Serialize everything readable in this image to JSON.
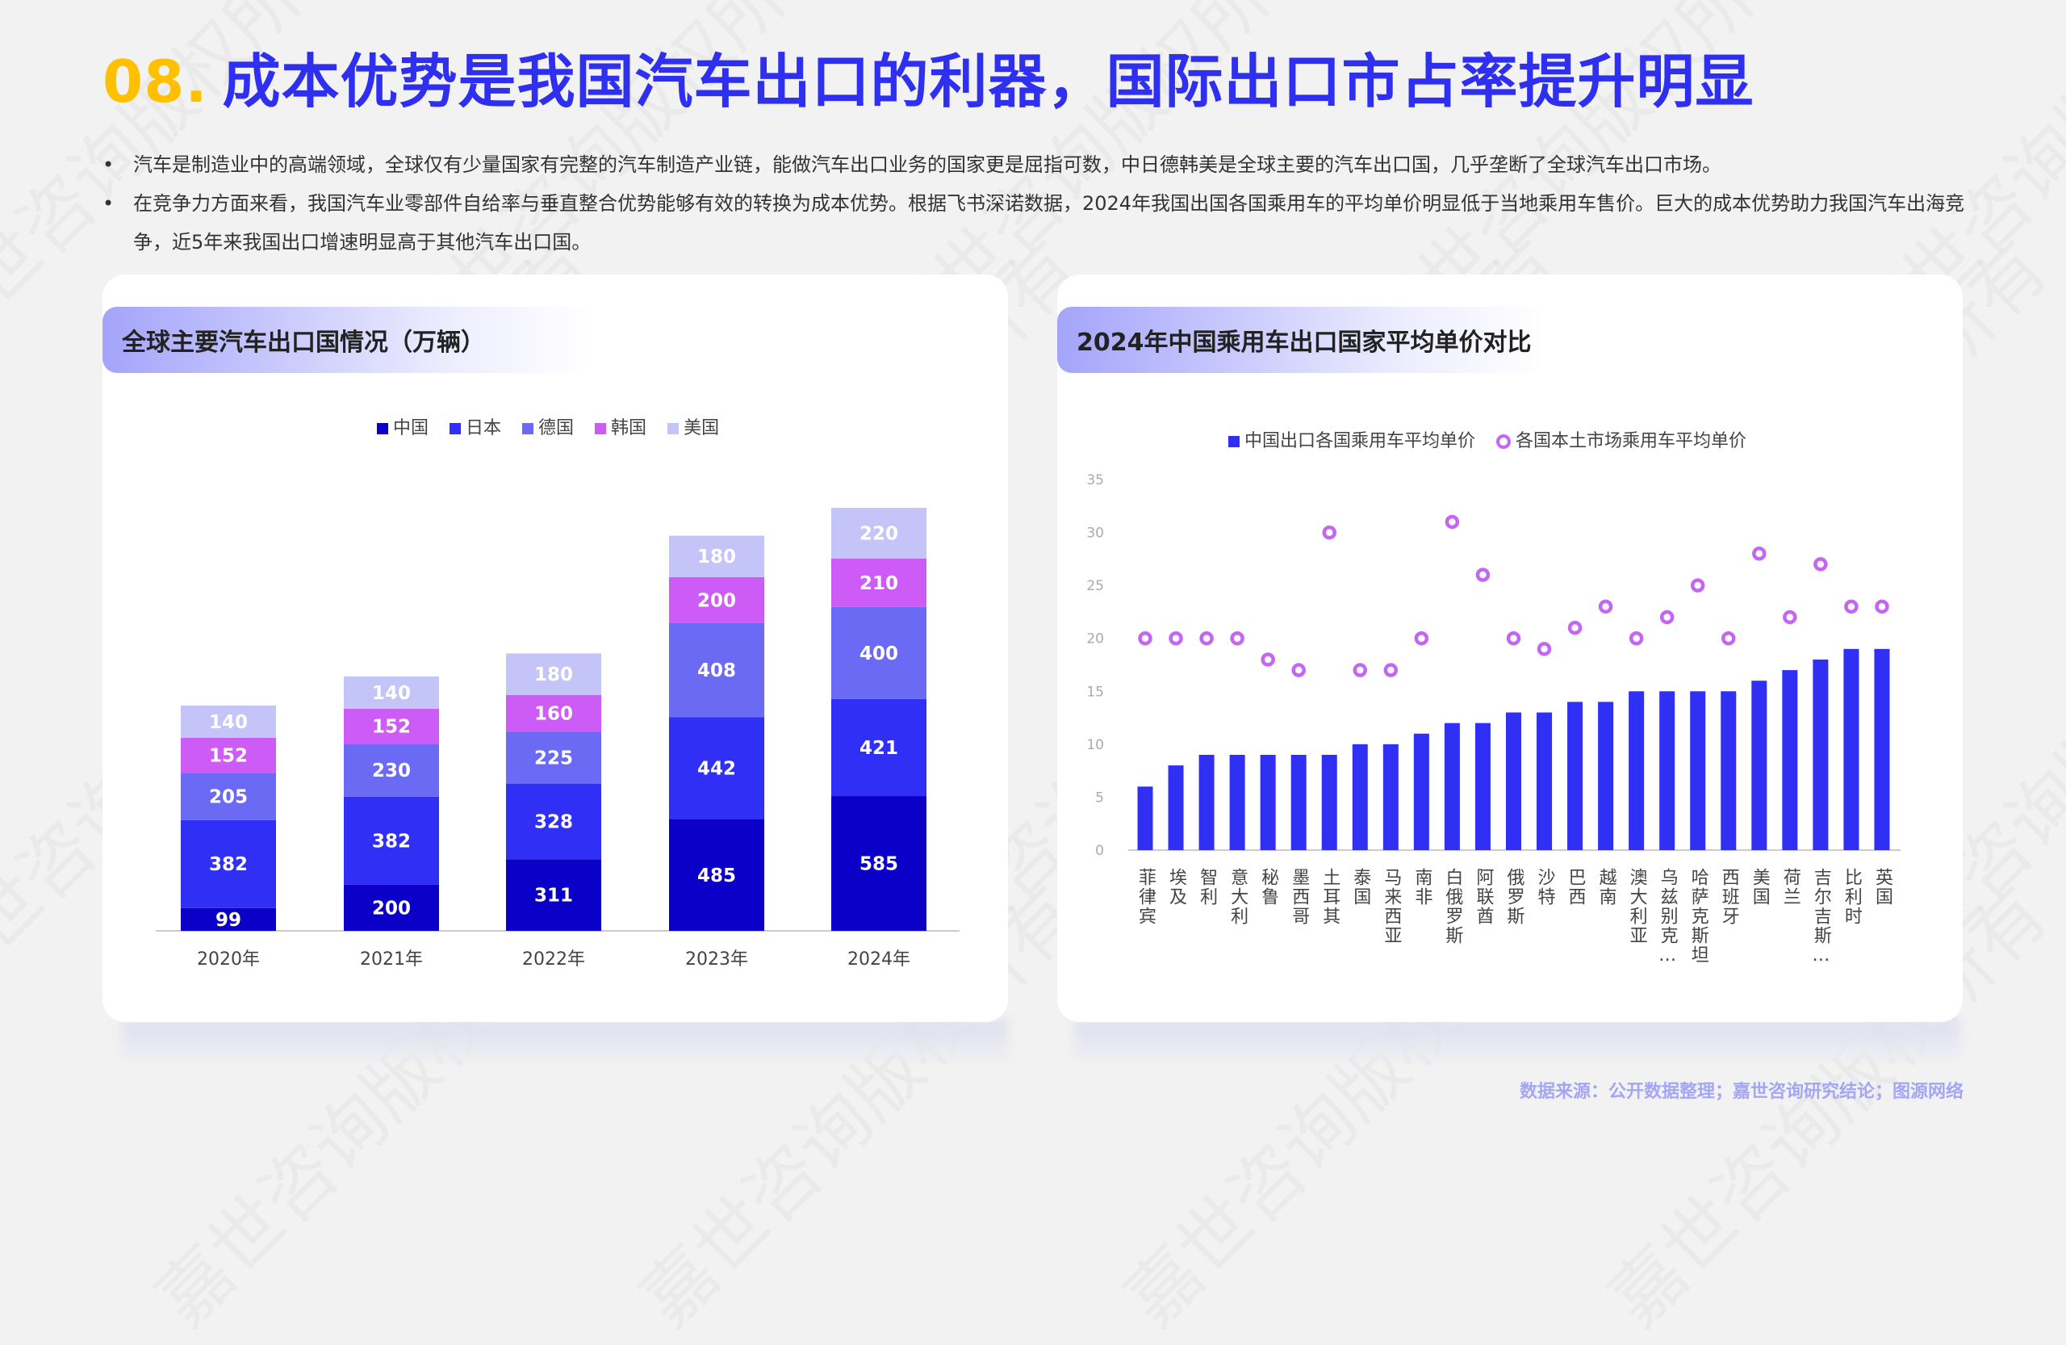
{
  "header": {
    "number": "08.",
    "title": "成本优势是我国汽车出口的利器，国际出口市占率提升明显"
  },
  "bullets": [
    "汽车是制造业中的高端领域，全球仅有少量国家有完整的汽车制造产业链，能做汽车出口业务的国家更是屈指可数，中日德韩美是全球主要的汽车出口国，几乎垄断了全球汽车出口市场。",
    "在竞争力方面来看，我国汽车业零部件自给率与垂直整合优势能够有效的转换为成本优势。根据飞书深诺数据，2024年我国出国各国乘用车的平均单价明显低于当地乘用车售价。巨大的成本优势助力我国汽车出海竞争，近5年来我国出口增速明显高于其他汽车出口国。"
  ],
  "left_panel": {
    "title": "全球主要汽车出口国情况（万辆）"
  },
  "right_panel": {
    "title": "2024年中国乘用车出口国家平均单价对比"
  },
  "source": "数据来源：公开数据整理；嘉世咨询研究结论；图源网络",
  "watermark": "嘉世咨询版权所有",
  "chart_data": [
    {
      "type": "bar",
      "stacked": true,
      "categories": [
        "2020年",
        "2021年",
        "2022年",
        "2023年",
        "2024年"
      ],
      "series": [
        {
          "name": "中国",
          "color": "#0a00c8",
          "values": [
            99,
            200,
            311,
            485,
            585
          ]
        },
        {
          "name": "日本",
          "color": "#2f2ff5",
          "values": [
            382,
            382,
            328,
            442,
            421
          ]
        },
        {
          "name": "德国",
          "color": "#6a6af5",
          "values": [
            205,
            230,
            225,
            408,
            400
          ]
        },
        {
          "name": "韩国",
          "color": "#cc5cf5",
          "values": [
            152,
            152,
            160,
            200,
            210
          ]
        },
        {
          "name": "美国",
          "color": "#c4c4f8",
          "values": [
            140,
            140,
            180,
            180,
            220
          ]
        }
      ],
      "data_labels": true,
      "legend": "top",
      "grid": false
    },
    {
      "type": "bar",
      "categories": [
        "菲律宾",
        "埃及",
        "智利",
        "意大利",
        "秘鲁",
        "墨西哥",
        "土耳其",
        "泰国",
        "马来西亚",
        "南非",
        "白俄罗斯",
        "阿联酋",
        "俄罗斯",
        "沙特",
        "巴西",
        "越南",
        "澳大利亚",
        "乌兹别克…",
        "哈萨克斯坦",
        "西班牙",
        "美国",
        "荷兰",
        "吉尔吉斯…",
        "比利时",
        "英国"
      ],
      "series": [
        {
          "name": "中国出口各国乘用车平均单价",
          "type": "bar",
          "color": "#3030f5",
          "values": [
            6,
            8,
            9,
            9,
            9,
            9,
            9,
            10,
            10,
            11,
            12,
            12,
            13,
            13,
            14,
            14,
            15,
            15,
            15,
            15,
            16,
            17,
            18,
            19,
            19
          ]
        },
        {
          "name": "各国本土市场乘用车平均单价",
          "type": "scatter",
          "color": "#c466f5",
          "values": [
            20,
            20,
            20,
            20,
            18,
            17,
            30,
            17,
            17,
            20,
            31,
            26,
            20,
            19,
            21,
            23,
            20,
            22,
            25,
            20,
            28,
            22,
            27,
            23,
            23
          ]
        }
      ],
      "ylim": [
        0,
        35
      ],
      "yticks": [
        0,
        5,
        10,
        15,
        20,
        25,
        30,
        35
      ],
      "legend": "top",
      "grid": false
    }
  ]
}
